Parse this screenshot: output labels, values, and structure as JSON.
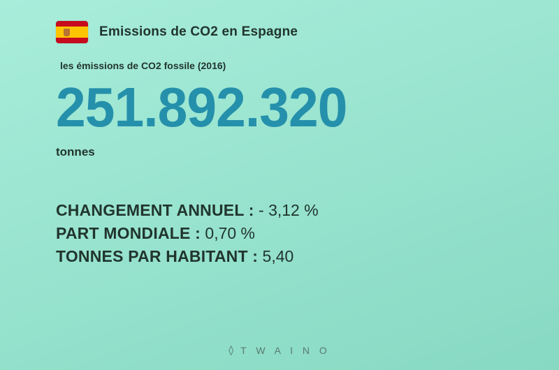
{
  "style": {
    "background": {
      "from": "#a8edda",
      "to": "#87d9c3"
    },
    "dark": "#21352d",
    "accent": "#2590ab",
    "title_fontsize": 19,
    "subtitle_fontsize": 14,
    "bignum_fontsize": 80,
    "unit_fontsize": 17,
    "stat_fontsize": 23,
    "footer_fontsize": 14,
    "footer_color": "#5a7a6f"
  },
  "flag": {
    "red": "#c60b1e",
    "yellow": "#ffc400",
    "emblem": "#b87333"
  },
  "header": {
    "title": "Emissions de CO2 en Espagne"
  },
  "main": {
    "subtitle": "les émissions de CO2 fossile (2016)",
    "value": "251.892.320",
    "unit": "tonnes"
  },
  "stats": [
    {
      "label": "CHANGEMENT ANNUEL :",
      "value": " - 3,12 %"
    },
    {
      "label": "PART MONDIALE :",
      "value": " 0,70 %"
    },
    {
      "label": "TONNES PAR HABITANT :",
      "value": " 5,40"
    }
  ],
  "footer": {
    "pre": "",
    "mid": "T W A I N O"
  }
}
